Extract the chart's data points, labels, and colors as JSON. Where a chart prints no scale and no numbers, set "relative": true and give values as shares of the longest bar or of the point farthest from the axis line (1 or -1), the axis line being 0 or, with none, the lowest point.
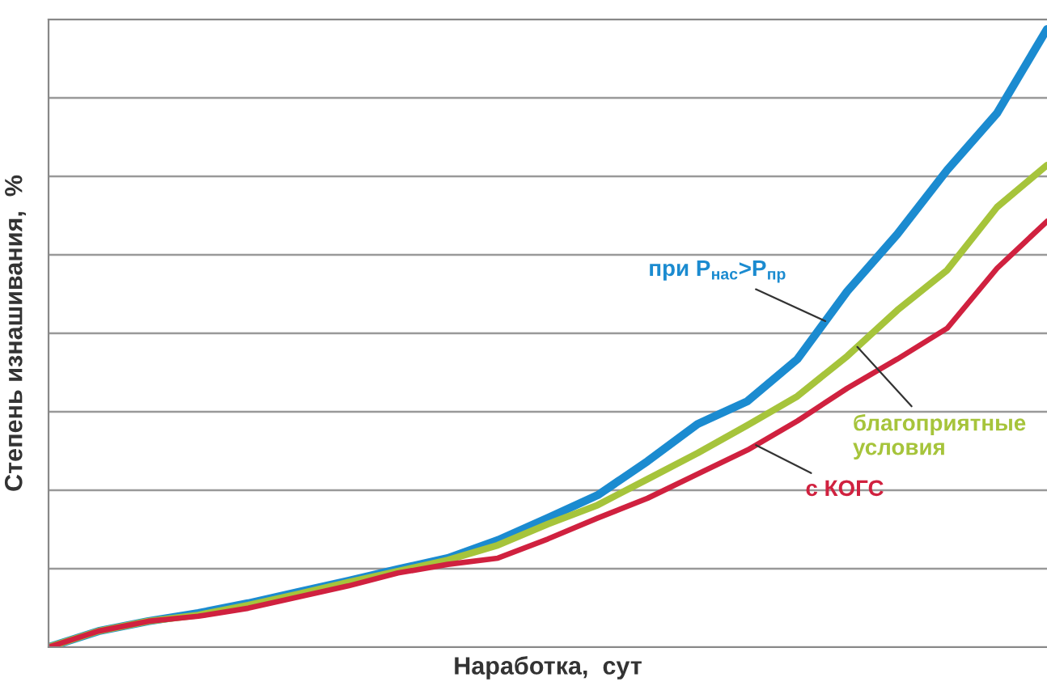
{
  "chart_data": {
    "type": "line",
    "relative": true,
    "xlabel": "Наработка,  сут",
    "ylabel": "Степень изнашивания,  %",
    "categories": [
      null,
      null,
      null,
      null,
      null,
      null,
      null,
      null,
      null,
      null,
      null,
      null,
      null,
      null,
      null,
      null,
      null,
      null,
      null,
      null,
      null
    ],
    "grid": "y",
    "legend": false,
    "marker": "none",
    "line_style": "solid",
    "series": [
      {
        "name": "при P$_{нас}$>P$_{пр}$",
        "color": "#1b8bd0",
        "values": [
          0,
          0.026,
          0.042,
          0.055,
          0.071,
          0.089,
          0.107,
          0.126,
          0.144,
          0.173,
          0.209,
          0.246,
          0.301,
          0.361,
          0.398,
          0.466,
          0.576,
          0.668,
          0.772,
          0.864,
          1
        ]
      },
      {
        "name": "благоприятные\nусловия",
        "color": "#a6c43b",
        "values": [
          0,
          0.026,
          0.042,
          0.052,
          0.068,
          0.086,
          0.105,
          0.123,
          0.141,
          0.165,
          0.199,
          0.23,
          0.272,
          0.314,
          0.359,
          0.406,
          0.471,
          0.545,
          0.61,
          0.712,
          0.78
        ]
      },
      {
        "name": "с КОГС",
        "color": "#d0213f",
        "values": [
          0,
          0.026,
          0.042,
          0.05,
          0.063,
          0.081,
          0.099,
          0.12,
          0.134,
          0.144,
          0.175,
          0.209,
          0.241,
          0.28,
          0.319,
          0.366,
          0.419,
          0.466,
          0.516,
          0.613,
          0.689
        ]
      }
    ]
  }
}
